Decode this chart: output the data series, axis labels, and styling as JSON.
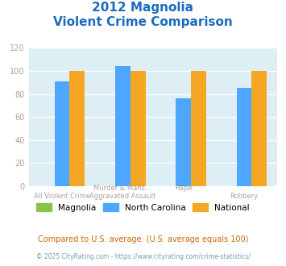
{
  "title_line1": "2012 Magnolia",
  "title_line2": "Violent Crime Comparison",
  "categories_bottom": [
    "All Violent Crime",
    "Aggravated Assault",
    "",
    "Robbery"
  ],
  "categories_top": [
    "",
    "Murder & Mans...",
    "Rape",
    ""
  ],
  "series": {
    "Magnolia": [
      0,
      0,
      0,
      0
    ],
    "North Carolina": [
      91,
      104,
      76,
      85
    ],
    "National": [
      100,
      100,
      100,
      100
    ]
  },
  "colors": {
    "Magnolia": "#8bc34a",
    "North Carolina": "#4da6ff",
    "National": "#f5a623"
  },
  "ylim": [
    0,
    120
  ],
  "yticks": [
    0,
    20,
    40,
    60,
    80,
    100,
    120
  ],
  "background_color": "#ddeef5",
  "title_color": "#1a6bbf",
  "xlabel_color": "#b0a0a0",
  "ylabel_color": "#b0a0a0",
  "footnote1": "Compared to U.S. average. (U.S. average equals 100)",
  "footnote2": "© 2025 CityRating.com - https://www.cityrating.com/crime-statistics/",
  "footnote1_color": "#cc6600",
  "footnote2_color": "#7a9ab5"
}
